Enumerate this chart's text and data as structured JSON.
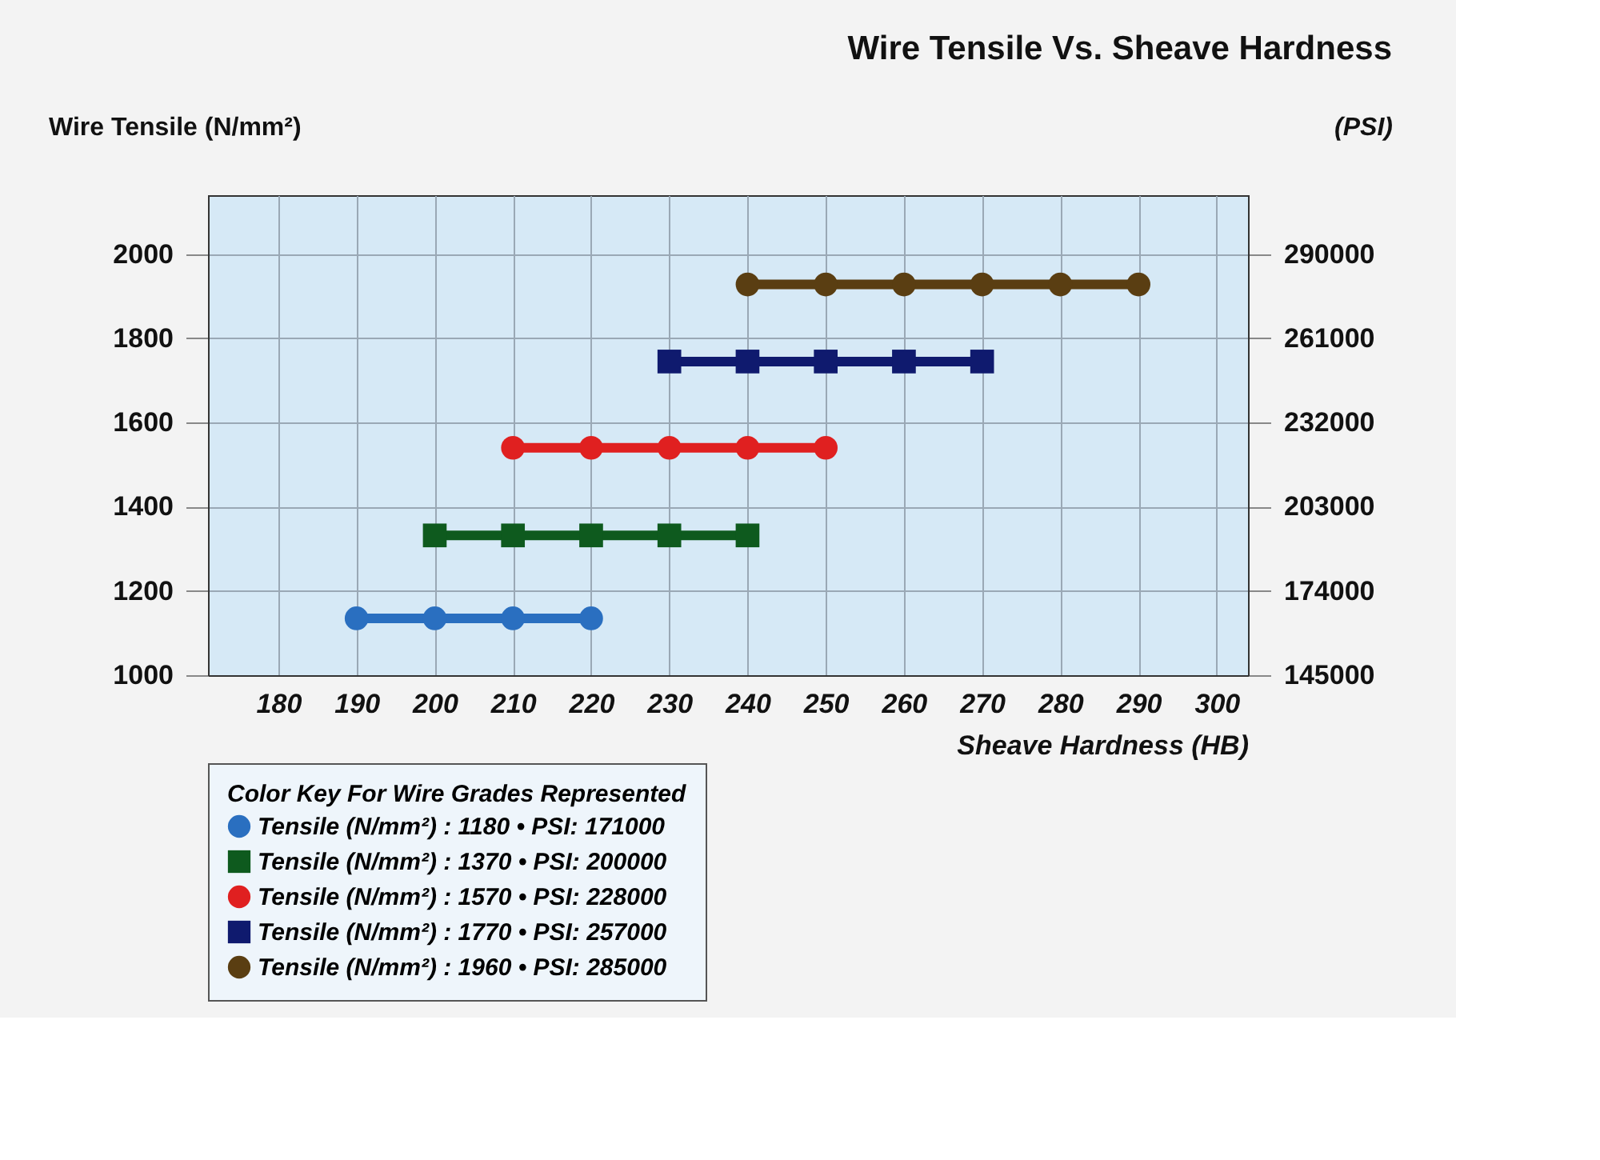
{
  "chart_data": {
    "type": "line",
    "title": "Wire Tensile Vs. Sheave Hardness",
    "xlabel": "Sheave Hardness (HB)",
    "ylabel": "Wire Tensile (N/mm²)",
    "y2label": "(PSI)",
    "legend_title": "Color Key For Wire Grades Represented",
    "xlim": [
      171,
      304
    ],
    "xticks": [
      180,
      190,
      200,
      210,
      220,
      230,
      240,
      250,
      260,
      270,
      280,
      290,
      300
    ],
    "ylim": [
      1000,
      2140
    ],
    "yticks": [
      1000,
      1200,
      1400,
      1600,
      1800,
      2000
    ],
    "y2lim": [
      145000,
      310300
    ],
    "y2ticks": [
      145000,
      174000,
      203000,
      232000,
      261000,
      290000
    ],
    "grid": true,
    "legend": "bottom left",
    "series": [
      {
        "name": "Tensile (N/mm²) : 1180 • PSI: 171000",
        "color": "#2a6fc0",
        "marker": "circle",
        "x": [
          190,
          200,
          210,
          220
        ],
        "values": [
          1135,
          1135,
          1135,
          1135
        ]
      },
      {
        "name": "Tensile (N/mm²) : 1370 • PSI: 200000",
        "color": "#0e5a1e",
        "marker": "square",
        "x": [
          200,
          210,
          220,
          230,
          240
        ],
        "values": [
          1332,
          1332,
          1332,
          1332,
          1332
        ]
      },
      {
        "name": "Tensile (N/mm²) : 1570 • PSI: 228000",
        "color": "#e02020",
        "marker": "circle",
        "x": [
          210,
          220,
          230,
          240,
          250
        ],
        "values": [
          1540,
          1540,
          1540,
          1540,
          1540
        ]
      },
      {
        "name": "Tensile (N/mm²) : 1770 • PSI: 257000",
        "color": "#0f1a6e",
        "marker": "square",
        "x": [
          230,
          240,
          250,
          260,
          270
        ],
        "values": [
          1745,
          1745,
          1745,
          1745,
          1745
        ]
      },
      {
        "name": "Tensile (N/mm²) : 1960 • PSI: 285000",
        "color": "#5a3e12",
        "marker": "circle",
        "x": [
          240,
          250,
          260,
          270,
          280,
          290
        ],
        "values": [
          1928,
          1928,
          1928,
          1928,
          1928,
          1928
        ]
      }
    ]
  }
}
